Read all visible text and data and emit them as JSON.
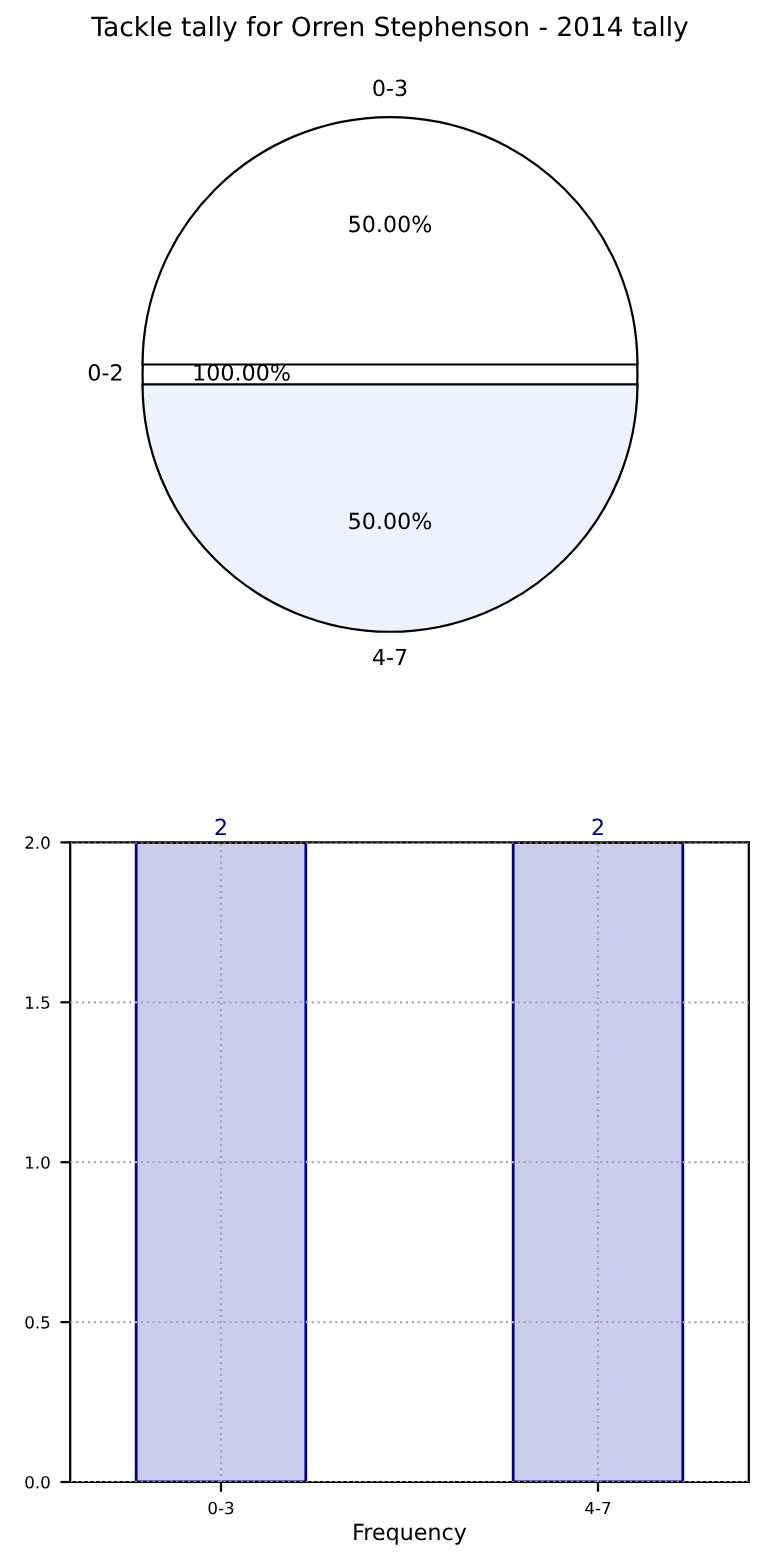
{
  "chart_data": [
    {
      "type": "pie",
      "title": "Tackle tally for Orren Stephenson - 2014 tally",
      "categories": [
        "0-2",
        "0-3",
        "4-7"
      ],
      "values": [
        100,
        50,
        50
      ],
      "colors": [
        "#ffffff",
        "#ffffff",
        "#eef2ff"
      ],
      "value_labels": [
        "100.00%",
        "50.00%",
        "50.00%"
      ]
    },
    {
      "type": "bar",
      "xlabel": "Frequency",
      "categories": [
        "0-3",
        "4-7"
      ],
      "values": [
        2,
        2
      ],
      "color": "#ccccee",
      "ylim": [
        0,
        2
      ],
      "yticks": [
        {
          "value": 0,
          "label": "0.0"
        },
        {
          "value": 0.5,
          "label": "0.5"
        },
        {
          "value": 1,
          "label": "1.0"
        },
        {
          "value": 1.5,
          "label": "1.5"
        },
        {
          "value": 2,
          "label": "2.0"
        }
      ],
      "grid": true,
      "data_labels": true
    }
  ]
}
